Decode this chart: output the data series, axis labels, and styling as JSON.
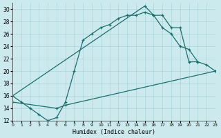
{
  "bg_color": "#cce9ed",
  "grid_color": "#aad5d9",
  "line_color": "#1a6e6e",
  "xlabel": "Humidex (Indice chaleur)",
  "xlim": [
    0,
    23
  ],
  "ylim": [
    12,
    31
  ],
  "xticks": [
    0,
    1,
    2,
    3,
    4,
    5,
    6,
    7,
    8,
    9,
    10,
    11,
    12,
    13,
    14,
    15,
    16,
    17,
    18,
    19,
    20,
    21,
    22,
    23
  ],
  "yticks": [
    12,
    14,
    16,
    18,
    20,
    22,
    24,
    26,
    28,
    30
  ],
  "series": [
    {
      "x": [
        0,
        1,
        2,
        3,
        4,
        5,
        6,
        7,
        8,
        9,
        10,
        11,
        12,
        13,
        14,
        15,
        16,
        17,
        18,
        19,
        20,
        21
      ],
      "y": [
        16,
        15,
        14,
        13,
        12,
        12.5,
        15,
        20,
        25,
        26,
        27,
        27.5,
        28.5,
        29,
        29,
        29.5,
        29,
        29,
        27,
        27,
        21.5,
        21.5
      ]
    },
    {
      "x": [
        0,
        15,
        16,
        17,
        18,
        19,
        20,
        21,
        22,
        23
      ],
      "y": [
        16,
        30.5,
        29,
        27,
        26,
        24,
        23.5,
        21.5,
        21,
        20
      ]
    },
    {
      "x": [
        0,
        5,
        6,
        23
      ],
      "y": [
        15,
        14,
        14.5,
        20
      ]
    }
  ]
}
